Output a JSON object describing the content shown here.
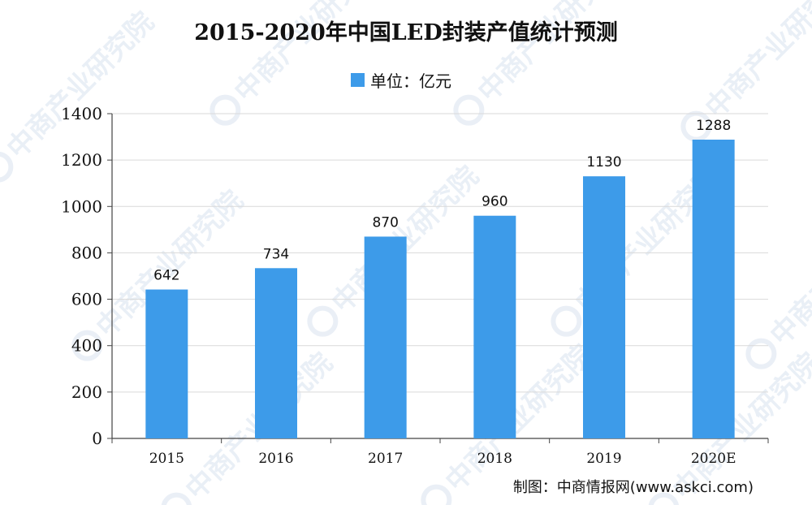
{
  "chart_data": {
    "type": "bar",
    "title": "2015-2020年中国LED封装产值统计预测",
    "legend": {
      "label": "单位：亿元",
      "placement": "top-center"
    },
    "categories": [
      "2015",
      "2016",
      "2017",
      "2018",
      "2019",
      "2020E"
    ],
    "series": [
      {
        "name": "单位：亿元",
        "values": [
          642,
          734,
          870,
          960,
          1130,
          1288
        ]
      }
    ],
    "ylim": [
      0,
      1400
    ],
    "yticks": [
      0,
      200,
      400,
      600,
      800,
      1000,
      1200,
      1400
    ],
    "grid": true,
    "bar_color": "#3d9be9",
    "data_labels": true
  },
  "source_note": "制图：中商情报网(www.askci.com)",
  "watermark": {
    "text": "中商产业研究院"
  }
}
